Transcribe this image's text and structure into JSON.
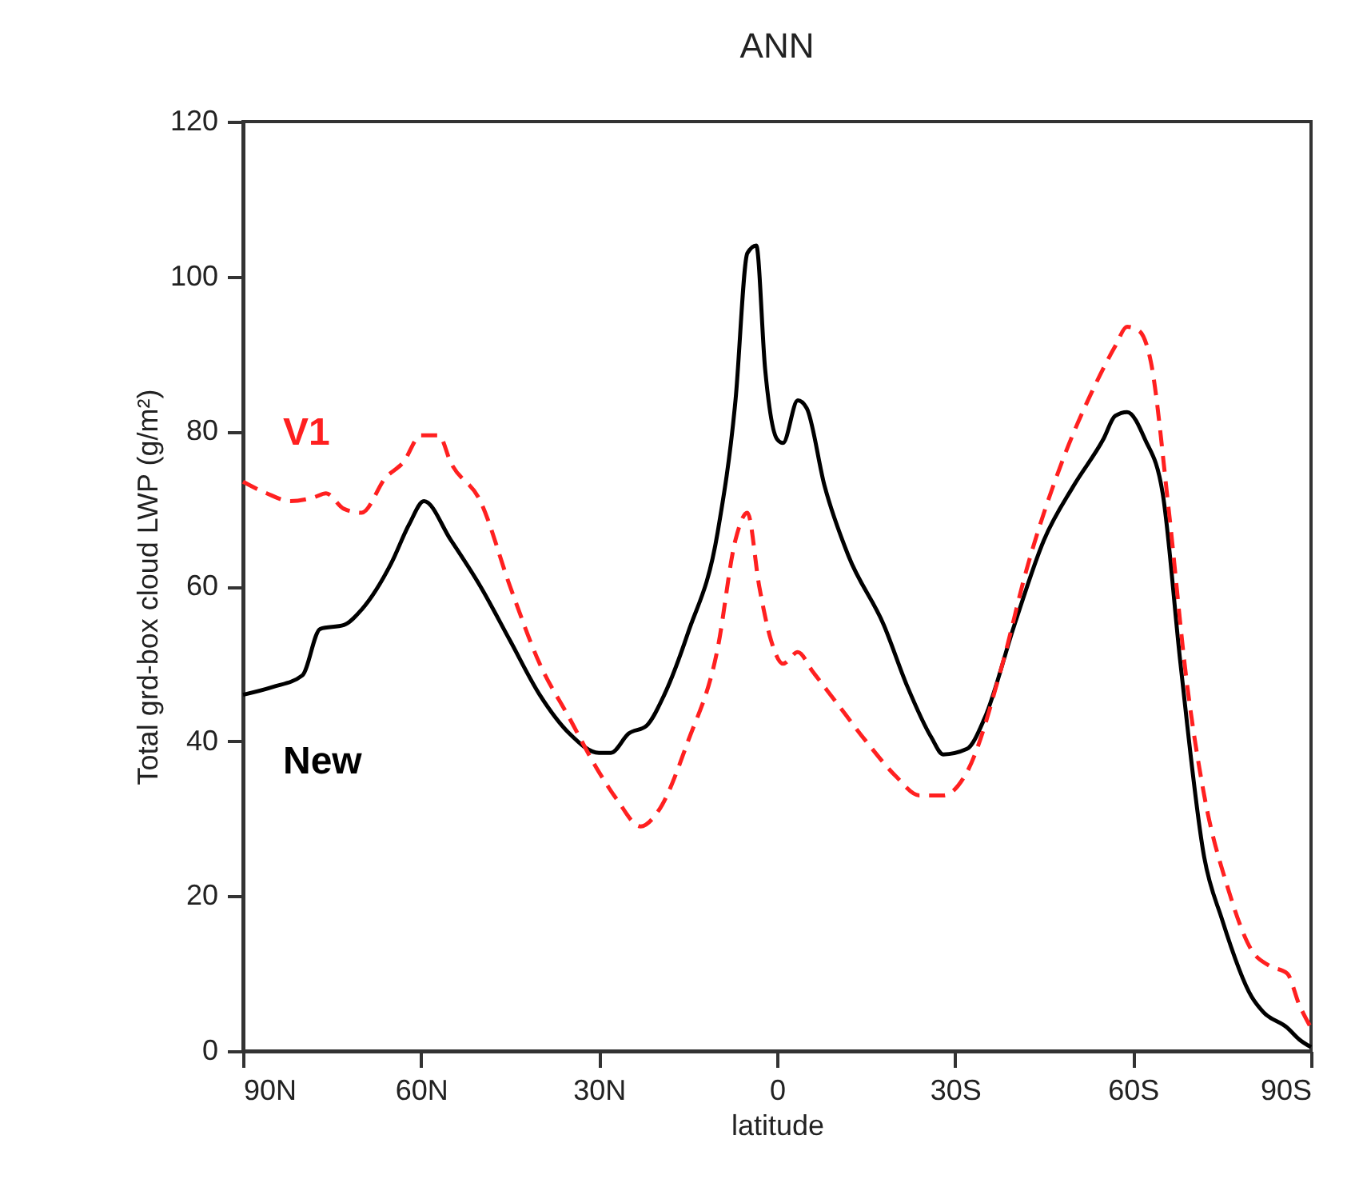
{
  "chart_data": {
    "type": "line",
    "title": "ANN",
    "xlabel": "latitude",
    "ylabel": "Total grd-box cloud LWP (g/m²)",
    "xlim": [
      90,
      -90
    ],
    "xticks": [
      {
        "value": 90,
        "label": "90N"
      },
      {
        "value": 60,
        "label": "60N"
      },
      {
        "value": 30,
        "label": "30N"
      },
      {
        "value": 0,
        "label": "0"
      },
      {
        "value": -30,
        "label": "30S"
      },
      {
        "value": -60,
        "label": "60S"
      },
      {
        "value": -90,
        "label": "90S"
      }
    ],
    "ylim": [
      0,
      120
    ],
    "yticks": [
      0,
      20,
      40,
      60,
      80,
      100,
      120
    ],
    "grid": false,
    "legend": false,
    "series": [
      {
        "name": "New",
        "color": "#000000",
        "line_style": "solid",
        "x": [
          90,
          85,
          80,
          77,
          73,
          70,
          65,
          62,
          59.5,
          55,
          50,
          45,
          40,
          35,
          30,
          28,
          25,
          22,
          19,
          15,
          10,
          7,
          5,
          3.5,
          2,
          0,
          -1,
          -3.5,
          -5,
          -8,
          -12,
          -18,
          -22,
          -26,
          -28,
          -32,
          -35,
          -40,
          -45,
          -50,
          -55,
          -57,
          -59,
          -62,
          -65,
          -68,
          -72,
          -75,
          -80,
          -82,
          -86,
          -88,
          -90
        ],
        "values": [
          46,
          47,
          48.5,
          54.5,
          55,
          57,
          63,
          68,
          71,
          66,
          60,
          53,
          46,
          41,
          38.5,
          38.5,
          41,
          42,
          46,
          54,
          67,
          84,
          103,
          104,
          88,
          79,
          78.5,
          84,
          83,
          73,
          64,
          55,
          47,
          40.5,
          38.3,
          39,
          43,
          55,
          66,
          73,
          79,
          82,
          82.5,
          79,
          72,
          50,
          25,
          17,
          7,
          5,
          3,
          1.5,
          0.5
        ]
      },
      {
        "name": "V1",
        "color": "#ff2020",
        "line_style": "dashed",
        "x": [
          90,
          86,
          82,
          78,
          76,
          73,
          70,
          66,
          63,
          60,
          57,
          55,
          50,
          45,
          40,
          35,
          30,
          27,
          23,
          20,
          15,
          10,
          7,
          5,
          3,
          1,
          -1,
          -3.5,
          -6,
          -10,
          -15,
          -20,
          -24,
          -28,
          -32,
          -38,
          -42,
          -48,
          -53,
          -57,
          -59,
          -61,
          -63,
          -66,
          -69,
          -72,
          -76,
          -80,
          -83,
          -86,
          -88,
          -90
        ],
        "values": [
          73.5,
          72,
          71,
          71.5,
          72,
          70,
          69.5,
          74,
          76,
          79.5,
          79.5,
          76,
          71,
          60,
          50,
          43,
          36,
          32.5,
          29,
          31,
          40,
          52,
          66,
          69.5,
          60,
          53,
          50,
          51.5,
          49,
          45,
          40,
          35.5,
          33,
          33,
          36,
          50,
          62,
          76,
          85,
          91,
          93.5,
          93,
          89,
          70,
          48,
          33,
          21,
          13,
          11,
          10,
          6,
          3
        ]
      }
    ]
  }
}
